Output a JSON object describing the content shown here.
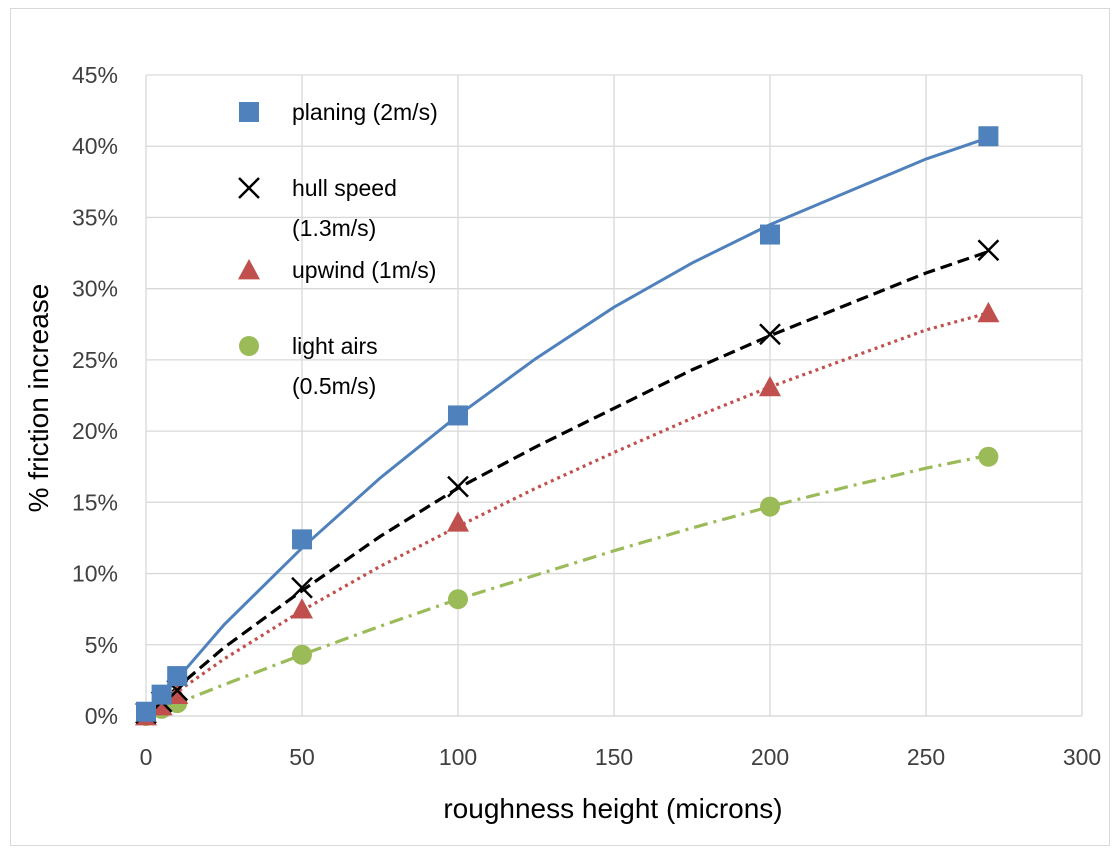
{
  "chart_data": {
    "type": "scatter",
    "title": "",
    "xlabel": "roughness height (microns)",
    "ylabel": "% friction increase",
    "xlim": [
      0,
      300
    ],
    "ylim": [
      0,
      0.45
    ],
    "xticks": [
      0,
      50,
      100,
      150,
      200,
      250,
      300
    ],
    "xtick_labels": [
      "0",
      "50",
      "100",
      "150",
      "200",
      "250",
      "300"
    ],
    "yticks": [
      0,
      0.05,
      0.1,
      0.15,
      0.2,
      0.25,
      0.3,
      0.35,
      0.4,
      0.45
    ],
    "ytick_labels": [
      "0%",
      "5%",
      "10%",
      "15%",
      "20%",
      "25%",
      "30%",
      "35%",
      "40%",
      "45%"
    ],
    "grid": true,
    "legend_position": "top-left inside",
    "series": [
      {
        "name_lines": [
          "planing (2m/s)"
        ],
        "marker": "square",
        "color": "#4f81bd",
        "trend_style": "solid",
        "x": [
          0,
          5,
          10,
          50,
          100,
          200,
          270
        ],
        "y": [
          0.003,
          0.015,
          0.028,
          0.124,
          0.211,
          0.338,
          0.407
        ],
        "trend_x": [
          0,
          10,
          25,
          50,
          75,
          100,
          125,
          150,
          175,
          200,
          225,
          250,
          270
        ],
        "trend_y": [
          0.0,
          0.026,
          0.064,
          0.118,
          0.167,
          0.211,
          0.251,
          0.287,
          0.318,
          0.345,
          0.368,
          0.391,
          0.406
        ]
      },
      {
        "name_lines": [
          "hull speed",
          "(1.3m/s)"
        ],
        "marker": "x",
        "color": "#000000",
        "trend_style": "dashed",
        "x": [
          0,
          5,
          10,
          50,
          100,
          200,
          270
        ],
        "y": [
          0.002,
          0.01,
          0.018,
          0.09,
          0.161,
          0.268,
          0.327
        ],
        "trend_x": [
          0,
          10,
          25,
          50,
          75,
          100,
          125,
          150,
          175,
          200,
          225,
          250,
          270
        ],
        "trend_y": [
          0.0,
          0.02,
          0.048,
          0.088,
          0.126,
          0.16,
          0.189,
          0.216,
          0.243,
          0.267,
          0.289,
          0.311,
          0.326
        ]
      },
      {
        "name_lines": [
          "upwind (1m/s)"
        ],
        "marker": "triangle",
        "color": "#c0504d",
        "trend_style": "dotted",
        "x": [
          0,
          5,
          10,
          50,
          100,
          200,
          270
        ],
        "y": [
          0.0,
          0.007,
          0.015,
          0.075,
          0.136,
          0.231,
          0.283
        ],
        "trend_x": [
          0,
          10,
          25,
          50,
          75,
          100,
          125,
          150,
          175,
          200,
          225,
          250,
          270
        ],
        "trend_y": [
          0.0,
          0.017,
          0.04,
          0.074,
          0.105,
          0.133,
          0.16,
          0.185,
          0.209,
          0.231,
          0.251,
          0.271,
          0.283
        ]
      },
      {
        "name_lines": [
          "light airs",
          "(0.5m/s)"
        ],
        "marker": "circle",
        "color": "#9bbb59",
        "trend_style": "dashdot",
        "x": [
          0,
          5,
          10,
          50,
          100,
          200,
          270
        ],
        "y": [
          0.0,
          0.005,
          0.009,
          0.043,
          0.082,
          0.147,
          0.182
        ],
        "trend_x": [
          0,
          10,
          25,
          50,
          75,
          100,
          125,
          150,
          175,
          200,
          225,
          250,
          270
        ],
        "trend_y": [
          0.0,
          0.009,
          0.022,
          0.043,
          0.063,
          0.082,
          0.099,
          0.116,
          0.132,
          0.147,
          0.161,
          0.174,
          0.183
        ]
      }
    ]
  }
}
